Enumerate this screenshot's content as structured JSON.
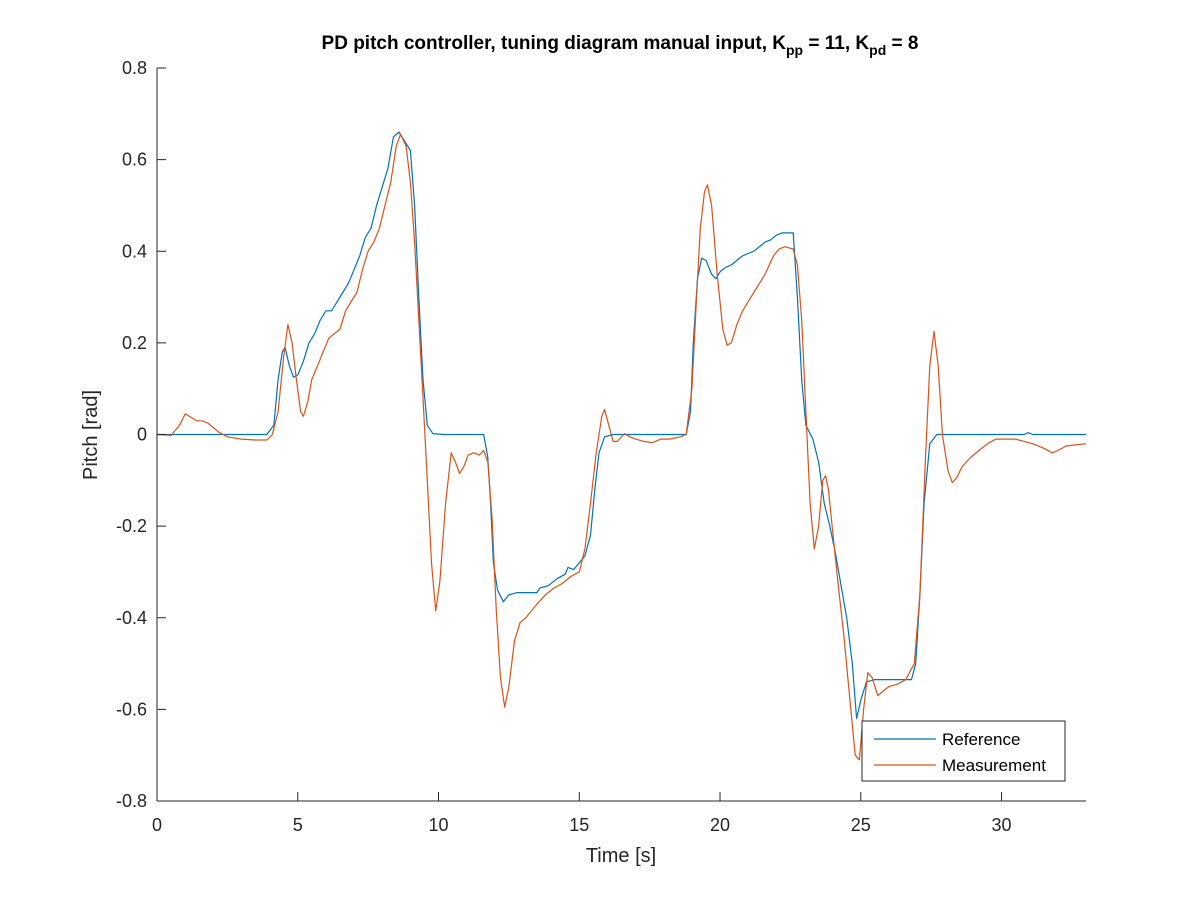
{
  "chart_data": {
    "type": "line",
    "title": {
      "prefix": "PD pitch controller, tuning diagram manual input, K",
      "sub1": "pp",
      "mid": " = 11, K",
      "sub2": "pd",
      "suffix": " = 8"
    },
    "xlabel": "Time [s]",
    "ylabel": "Pitch [rad]",
    "xlim": [
      0,
      33
    ],
    "ylim": [
      -0.8,
      0.8
    ],
    "xticks": [
      0,
      5,
      10,
      15,
      20,
      25,
      30
    ],
    "xtick_labels": [
      "0",
      "5",
      "10",
      "15",
      "20",
      "25",
      "30"
    ],
    "yticks": [
      -0.8,
      -0.6,
      -0.4,
      -0.2,
      0,
      0.2,
      0.4,
      0.6,
      0.8
    ],
    "ytick_labels": [
      "-0.8",
      "-0.6",
      "-0.4",
      "-0.2",
      "0",
      "0.2",
      "0.4",
      "0.6",
      "0.8"
    ],
    "grid": false,
    "legend_position": "bottom-right",
    "series": [
      {
        "name": "Reference",
        "color": "#0072BD",
        "points": [
          [
            0,
            0
          ],
          [
            3.9,
            0
          ],
          [
            4.15,
            0.02
          ],
          [
            4.3,
            0.12
          ],
          [
            4.45,
            0.18
          ],
          [
            4.55,
            0.19
          ],
          [
            4.7,
            0.15
          ],
          [
            4.85,
            0.125
          ],
          [
            5.0,
            0.13
          ],
          [
            5.2,
            0.16
          ],
          [
            5.4,
            0.2
          ],
          [
            5.6,
            0.22
          ],
          [
            5.8,
            0.25
          ],
          [
            6.0,
            0.27
          ],
          [
            6.2,
            0.27
          ],
          [
            6.4,
            0.29
          ],
          [
            6.6,
            0.31
          ],
          [
            6.8,
            0.33
          ],
          [
            7.0,
            0.36
          ],
          [
            7.2,
            0.39
          ],
          [
            7.4,
            0.43
          ],
          [
            7.6,
            0.45
          ],
          [
            7.8,
            0.5
          ],
          [
            8.0,
            0.54
          ],
          [
            8.2,
            0.58
          ],
          [
            8.4,
            0.65
          ],
          [
            8.6,
            0.66
          ],
          [
            8.8,
            0.64
          ],
          [
            9.0,
            0.62
          ],
          [
            9.15,
            0.5
          ],
          [
            9.3,
            0.3
          ],
          [
            9.45,
            0.12
          ],
          [
            9.6,
            0.02
          ],
          [
            9.8,
            0.002
          ],
          [
            10.2,
            0
          ],
          [
            11.6,
            0
          ],
          [
            11.75,
            -0.05
          ],
          [
            11.85,
            -0.15
          ],
          [
            11.95,
            -0.28
          ],
          [
            12.1,
            -0.34
          ],
          [
            12.3,
            -0.365
          ],
          [
            12.5,
            -0.35
          ],
          [
            12.8,
            -0.345
          ],
          [
            13.5,
            -0.345
          ],
          [
            13.6,
            -0.335
          ],
          [
            13.9,
            -0.33
          ],
          [
            14.2,
            -0.315
          ],
          [
            14.5,
            -0.305
          ],
          [
            14.6,
            -0.29
          ],
          [
            14.8,
            -0.295
          ],
          [
            15.0,
            -0.28
          ],
          [
            15.2,
            -0.265
          ],
          [
            15.4,
            -0.22
          ],
          [
            15.55,
            -0.12
          ],
          [
            15.7,
            -0.04
          ],
          [
            15.9,
            -0.005
          ],
          [
            16.2,
            0
          ],
          [
            18.8,
            0
          ],
          [
            18.95,
            0.05
          ],
          [
            19.05,
            0.2
          ],
          [
            19.2,
            0.34
          ],
          [
            19.35,
            0.385
          ],
          [
            19.5,
            0.38
          ],
          [
            19.7,
            0.35
          ],
          [
            19.85,
            0.34
          ],
          [
            20.0,
            0.355
          ],
          [
            20.2,
            0.365
          ],
          [
            20.4,
            0.37
          ],
          [
            20.6,
            0.38
          ],
          [
            20.8,
            0.39
          ],
          [
            21.0,
            0.395
          ],
          [
            21.2,
            0.4
          ],
          [
            21.4,
            0.41
          ],
          [
            21.6,
            0.42
          ],
          [
            21.8,
            0.425
          ],
          [
            22.0,
            0.435
          ],
          [
            22.2,
            0.44
          ],
          [
            22.6,
            0.44
          ],
          [
            22.75,
            0.3
          ],
          [
            22.9,
            0.12
          ],
          [
            23.05,
            0.02
          ],
          [
            23.3,
            -0.01
          ],
          [
            23.5,
            -0.06
          ],
          [
            23.7,
            -0.15
          ],
          [
            23.9,
            -0.2
          ],
          [
            24.1,
            -0.26
          ],
          [
            24.3,
            -0.33
          ],
          [
            24.5,
            -0.4
          ],
          [
            24.7,
            -0.5
          ],
          [
            24.85,
            -0.62
          ],
          [
            25.0,
            -0.58
          ],
          [
            25.2,
            -0.54
          ],
          [
            25.5,
            -0.535
          ],
          [
            26.8,
            -0.535
          ],
          [
            26.95,
            -0.5
          ],
          [
            27.1,
            -0.35
          ],
          [
            27.25,
            -0.15
          ],
          [
            27.45,
            -0.02
          ],
          [
            27.7,
            0
          ],
          [
            30.8,
            0
          ],
          [
            30.95,
            0.004
          ],
          [
            31.1,
            0
          ],
          [
            33,
            0
          ]
        ]
      },
      {
        "name": "Measurement",
        "color": "#D95319",
        "points": [
          [
            0,
            0
          ],
          [
            0.5,
            -0.002
          ],
          [
            0.8,
            0.02
          ],
          [
            1.0,
            0.045
          ],
          [
            1.2,
            0.038
          ],
          [
            1.4,
            0.03
          ],
          [
            1.6,
            0.03
          ],
          [
            1.8,
            0.025
          ],
          [
            2.0,
            0.015
          ],
          [
            2.2,
            0.005
          ],
          [
            2.5,
            -0.005
          ],
          [
            3.0,
            -0.01
          ],
          [
            3.5,
            -0.012
          ],
          [
            3.9,
            -0.012
          ],
          [
            4.1,
            0.0
          ],
          [
            4.3,
            0.05
          ],
          [
            4.5,
            0.17
          ],
          [
            4.65,
            0.24
          ],
          [
            4.8,
            0.2
          ],
          [
            4.95,
            0.12
          ],
          [
            5.1,
            0.05
          ],
          [
            5.2,
            0.04
          ],
          [
            5.35,
            0.07
          ],
          [
            5.5,
            0.12
          ],
          [
            5.7,
            0.15
          ],
          [
            5.9,
            0.18
          ],
          [
            6.1,
            0.21
          ],
          [
            6.3,
            0.22
          ],
          [
            6.5,
            0.23
          ],
          [
            6.7,
            0.27
          ],
          [
            6.9,
            0.29
          ],
          [
            7.1,
            0.31
          ],
          [
            7.3,
            0.36
          ],
          [
            7.5,
            0.4
          ],
          [
            7.7,
            0.42
          ],
          [
            7.9,
            0.45
          ],
          [
            8.1,
            0.5
          ],
          [
            8.3,
            0.55
          ],
          [
            8.5,
            0.63
          ],
          [
            8.65,
            0.655
          ],
          [
            8.85,
            0.63
          ],
          [
            9.0,
            0.55
          ],
          [
            9.15,
            0.42
          ],
          [
            9.3,
            0.25
          ],
          [
            9.45,
            0.08
          ],
          [
            9.6,
            -0.1
          ],
          [
            9.75,
            -0.28
          ],
          [
            9.9,
            -0.385
          ],
          [
            10.05,
            -0.32
          ],
          [
            10.25,
            -0.15
          ],
          [
            10.45,
            -0.04
          ],
          [
            10.6,
            -0.06
          ],
          [
            10.75,
            -0.085
          ],
          [
            10.9,
            -0.07
          ],
          [
            11.05,
            -0.045
          ],
          [
            11.25,
            -0.04
          ],
          [
            11.45,
            -0.045
          ],
          [
            11.6,
            -0.035
          ],
          [
            11.75,
            -0.06
          ],
          [
            11.9,
            -0.18
          ],
          [
            12.05,
            -0.38
          ],
          [
            12.2,
            -0.53
          ],
          [
            12.35,
            -0.595
          ],
          [
            12.5,
            -0.55
          ],
          [
            12.7,
            -0.45
          ],
          [
            12.9,
            -0.41
          ],
          [
            13.1,
            -0.4
          ],
          [
            13.3,
            -0.385
          ],
          [
            13.5,
            -0.37
          ],
          [
            13.8,
            -0.35
          ],
          [
            14.1,
            -0.335
          ],
          [
            14.4,
            -0.325
          ],
          [
            14.7,
            -0.31
          ],
          [
            15.0,
            -0.3
          ],
          [
            15.2,
            -0.25
          ],
          [
            15.4,
            -0.15
          ],
          [
            15.6,
            -0.04
          ],
          [
            15.8,
            0.04
          ],
          [
            15.9,
            0.055
          ],
          [
            16.05,
            0.02
          ],
          [
            16.2,
            -0.015
          ],
          [
            16.35,
            -0.015
          ],
          [
            16.6,
            0.002
          ],
          [
            16.8,
            -0.005
          ],
          [
            17.0,
            -0.01
          ],
          [
            17.3,
            -0.015
          ],
          [
            17.6,
            -0.018
          ],
          [
            17.9,
            -0.01
          ],
          [
            18.2,
            -0.01
          ],
          [
            18.6,
            -0.005
          ],
          [
            18.8,
            0.0
          ],
          [
            19.0,
            0.1
          ],
          [
            19.15,
            0.28
          ],
          [
            19.3,
            0.45
          ],
          [
            19.45,
            0.53
          ],
          [
            19.55,
            0.545
          ],
          [
            19.7,
            0.5
          ],
          [
            19.9,
            0.35
          ],
          [
            20.1,
            0.23
          ],
          [
            20.25,
            0.195
          ],
          [
            20.4,
            0.2
          ],
          [
            20.6,
            0.24
          ],
          [
            20.8,
            0.27
          ],
          [
            21.0,
            0.29
          ],
          [
            21.3,
            0.32
          ],
          [
            21.6,
            0.35
          ],
          [
            21.9,
            0.39
          ],
          [
            22.1,
            0.405
          ],
          [
            22.3,
            0.41
          ],
          [
            22.6,
            0.405
          ],
          [
            22.75,
            0.37
          ],
          [
            22.9,
            0.25
          ],
          [
            23.05,
            0.05
          ],
          [
            23.2,
            -0.15
          ],
          [
            23.35,
            -0.25
          ],
          [
            23.5,
            -0.2
          ],
          [
            23.65,
            -0.1
          ],
          [
            23.75,
            -0.09
          ],
          [
            23.85,
            -0.12
          ],
          [
            24.0,
            -0.21
          ],
          [
            24.2,
            -0.33
          ],
          [
            24.4,
            -0.44
          ],
          [
            24.6,
            -0.57
          ],
          [
            24.8,
            -0.7
          ],
          [
            24.95,
            -0.71
          ],
          [
            25.1,
            -0.6
          ],
          [
            25.25,
            -0.52
          ],
          [
            25.4,
            -0.53
          ],
          [
            25.6,
            -0.57
          ],
          [
            25.8,
            -0.56
          ],
          [
            26.0,
            -0.55
          ],
          [
            26.3,
            -0.545
          ],
          [
            26.6,
            -0.535
          ],
          [
            26.9,
            -0.5
          ],
          [
            27.1,
            -0.35
          ],
          [
            27.3,
            -0.05
          ],
          [
            27.45,
            0.15
          ],
          [
            27.6,
            0.225
          ],
          [
            27.75,
            0.15
          ],
          [
            27.9,
            0.0
          ],
          [
            28.1,
            -0.08
          ],
          [
            28.25,
            -0.105
          ],
          [
            28.4,
            -0.095
          ],
          [
            28.6,
            -0.07
          ],
          [
            28.9,
            -0.05
          ],
          [
            29.2,
            -0.035
          ],
          [
            29.5,
            -0.02
          ],
          [
            29.8,
            -0.01
          ],
          [
            30.2,
            -0.01
          ],
          [
            30.5,
            -0.01
          ],
          [
            30.8,
            -0.015
          ],
          [
            31.1,
            -0.02
          ],
          [
            31.5,
            -0.03
          ],
          [
            31.8,
            -0.04
          ],
          [
            32.0,
            -0.035
          ],
          [
            32.3,
            -0.025
          ],
          [
            32.7,
            -0.022
          ],
          [
            33,
            -0.02
          ]
        ]
      }
    ]
  }
}
